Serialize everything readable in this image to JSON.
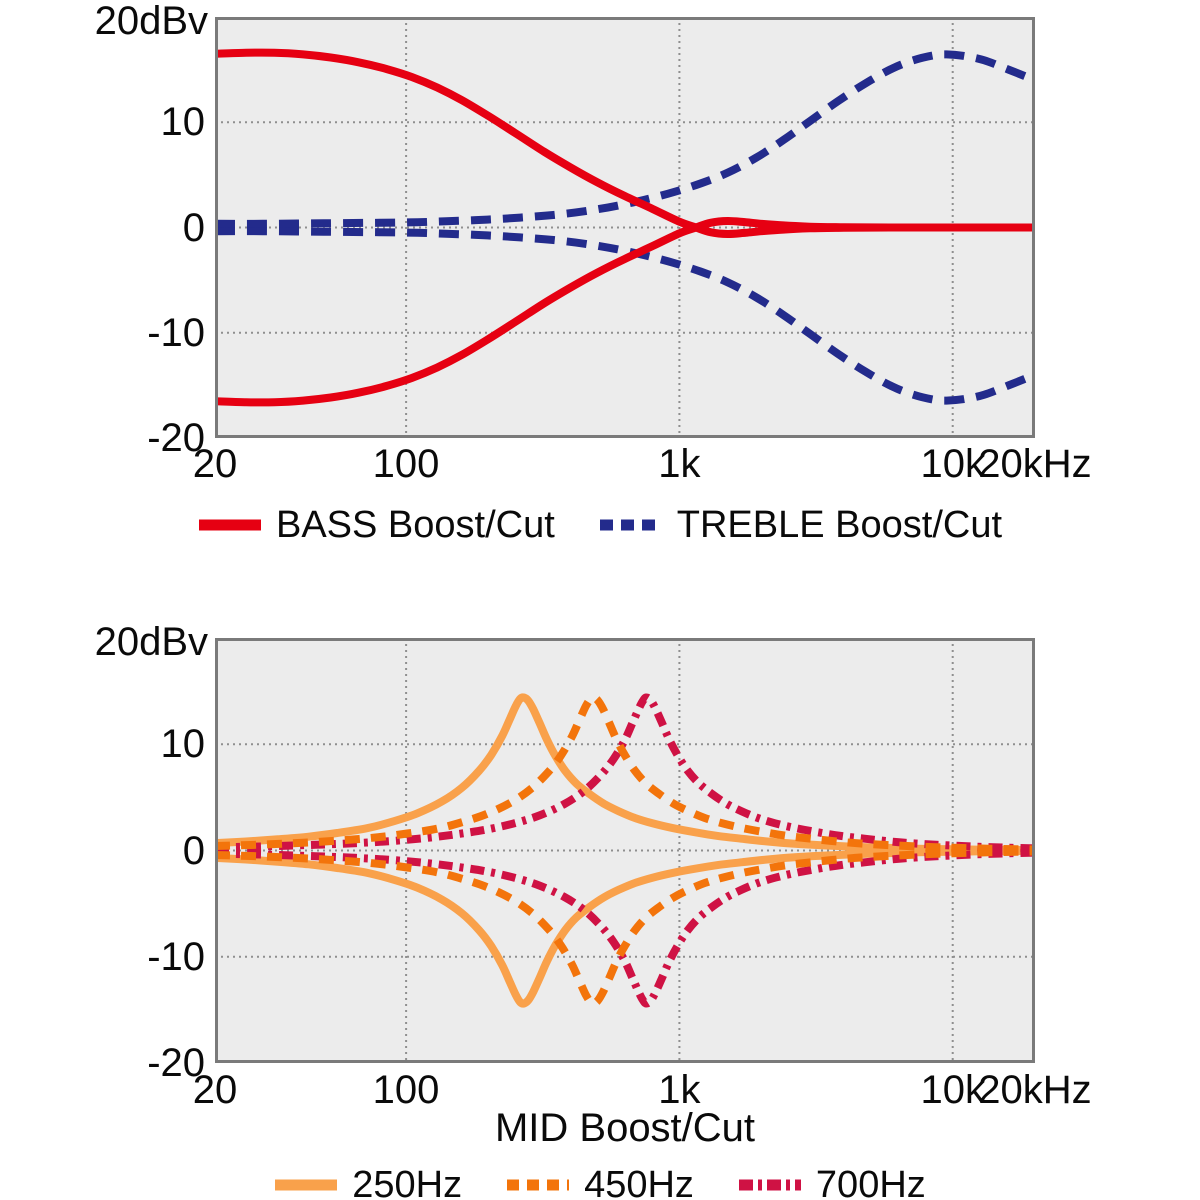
{
  "page": {
    "background_color": "#ffffff",
    "plot_background_color": "#ececec",
    "grid_color": "#8f8f8f",
    "border_color": "#7a7a7a",
    "text_color": "#0a0a0a"
  },
  "chart_data": [
    {
      "type": "line",
      "title": "",
      "unit_label": "20dBv",
      "xlabel": "",
      "x_scale": "log",
      "x_range_hz": [
        20,
        20000
      ],
      "ylim": [
        -20,
        20
      ],
      "grid": {
        "x_hz": [
          100,
          1000,
          10000
        ],
        "y_db": [
          10,
          0,
          -10
        ]
      },
      "x_ticks": [
        {
          "hz": 20,
          "label": "20"
        },
        {
          "hz": 100,
          "label": "100"
        },
        {
          "hz": 1000,
          "label": "1k"
        },
        {
          "hz": 10000,
          "label": "10k"
        },
        {
          "hz": 20000,
          "label": "20kHz"
        }
      ],
      "y_ticks": [
        {
          "db": 10,
          "label": "10"
        },
        {
          "db": 0,
          "label": "0"
        },
        {
          "db": -10,
          "label": "-10"
        },
        {
          "db": -20,
          "label": "-20"
        }
      ],
      "series": [
        {
          "name": "BASS Boost/Cut",
          "color": "#e60012",
          "style": "solid",
          "width": 8,
          "dash": [],
          "legend_dash": [],
          "z": 2,
          "mirrored": true,
          "points": [
            [
              20,
              16.5
            ],
            [
              26,
              16.6
            ],
            [
              33,
              16.6
            ],
            [
              42,
              16.45
            ],
            [
              53,
              16.15
            ],
            [
              67,
              15.7
            ],
            [
              85,
              15.05
            ],
            [
              105,
              14.3
            ],
            [
              130,
              13.3
            ],
            [
              160,
              12.1
            ],
            [
              200,
              10.6
            ],
            [
              250,
              9.0
            ],
            [
              320,
              7.2
            ],
            [
              400,
              5.7
            ],
            [
              500,
              4.3
            ],
            [
              630,
              3.0
            ],
            [
              800,
              1.75
            ],
            [
              1000,
              0.55
            ],
            [
              1150,
              0.0
            ],
            [
              1300,
              -0.45
            ],
            [
              1500,
              -0.62
            ],
            [
              1750,
              -0.5
            ],
            [
              2000,
              -0.35
            ],
            [
              2400,
              -0.2
            ],
            [
              3000,
              -0.08
            ],
            [
              4000,
              -0.02
            ],
            [
              6000,
              0
            ],
            [
              10000,
              0
            ],
            [
              20000,
              0
            ]
          ]
        },
        {
          "name": "TREBLE Boost/Cut",
          "color": "#232b8c",
          "style": "dashed",
          "width": 8,
          "dash": [
            20,
            12
          ],
          "legend_dash": [
            13,
            8
          ],
          "z": 1,
          "mirrored": true,
          "points": [
            [
              20,
              0.35
            ],
            [
              30,
              0.35
            ],
            [
              50,
              0.4
            ],
            [
              80,
              0.45
            ],
            [
              110,
              0.5
            ],
            [
              140,
              0.6
            ],
            [
              180,
              0.7
            ],
            [
              230,
              0.85
            ],
            [
              300,
              1.05
            ],
            [
              380,
              1.3
            ],
            [
              480,
              1.65
            ],
            [
              600,
              2.1
            ],
            [
              750,
              2.65
            ],
            [
              950,
              3.35
            ],
            [
              1200,
              4.2
            ],
            [
              1500,
              5.2
            ],
            [
              1900,
              6.6
            ],
            [
              2400,
              8.3
            ],
            [
              3000,
              10.1
            ],
            [
              3800,
              12.0
            ],
            [
              4800,
              13.7
            ],
            [
              6000,
              15.1
            ],
            [
              7200,
              15.9
            ],
            [
              8500,
              16.35
            ],
            [
              9500,
              16.45
            ],
            [
              11000,
              16.3
            ],
            [
              13000,
              15.9
            ],
            [
              16000,
              15.0
            ],
            [
              20000,
              14.0
            ]
          ]
        }
      ]
    },
    {
      "type": "line",
      "title": "",
      "unit_label": "20dBv",
      "xlabel": "MID Boost/Cut",
      "x_scale": "log",
      "x_range_hz": [
        20,
        20000
      ],
      "ylim": [
        -20,
        20
      ],
      "grid": {
        "x_hz": [
          100,
          1000,
          10000
        ],
        "y_db": [
          10,
          0,
          -10
        ]
      },
      "x_ticks": [
        {
          "hz": 20,
          "label": "20"
        },
        {
          "hz": 100,
          "label": "100"
        },
        {
          "hz": 1000,
          "label": "1k"
        },
        {
          "hz": 10000,
          "label": "10k"
        },
        {
          "hz": 20000,
          "label": "20kHz"
        }
      ],
      "y_ticks": [
        {
          "db": 10,
          "label": "10"
        },
        {
          "db": 0,
          "label": "0"
        },
        {
          "db": -10,
          "label": "-10"
        },
        {
          "db": -20,
          "label": "-20"
        }
      ],
      "series": [
        {
          "name": "250Hz",
          "color": "#f9a14b",
          "style": "solid",
          "width": 8,
          "dash": [],
          "legend_dash": [],
          "z": 1,
          "mirrored": true,
          "points": [
            [
              20,
              0.7
            ],
            [
              26,
              0.85
            ],
            [
              34,
              1.05
            ],
            [
              44,
              1.3
            ],
            [
              56,
              1.65
            ],
            [
              72,
              2.1
            ],
            [
              90,
              2.75
            ],
            [
              110,
              3.5
            ],
            [
              135,
              4.6
            ],
            [
              160,
              5.9
            ],
            [
              185,
              7.5
            ],
            [
              205,
              9.0
            ],
            [
              225,
              10.8
            ],
            [
              240,
              12.4
            ],
            [
              252,
              13.6
            ],
            [
              262,
              14.3
            ],
            [
              270,
              14.4
            ],
            [
              280,
              14.1
            ],
            [
              292,
              13.3
            ],
            [
              308,
              12.0
            ],
            [
              328,
              10.4
            ],
            [
              352,
              8.9
            ],
            [
              382,
              7.5
            ],
            [
              420,
              6.3
            ],
            [
              470,
              5.3
            ],
            [
              530,
              4.4
            ],
            [
              600,
              3.7
            ],
            [
              690,
              3.05
            ],
            [
              800,
              2.55
            ],
            [
              950,
              2.1
            ],
            [
              1150,
              1.7
            ],
            [
              1400,
              1.35
            ],
            [
              1700,
              1.1
            ],
            [
              2100,
              0.85
            ],
            [
              2600,
              0.65
            ],
            [
              3300,
              0.5
            ],
            [
              4300,
              0.36
            ],
            [
              5600,
              0.26
            ],
            [
              7500,
              0.17
            ],
            [
              10000,
              0.11
            ],
            [
              14000,
              0.06
            ],
            [
              20000,
              0.03
            ]
          ]
        },
        {
          "name": "450Hz",
          "color": "#f3740b",
          "style": "dashed",
          "width": 8,
          "dash": [
            15,
            11
          ],
          "legend_dash": [
            12,
            8
          ],
          "z": 3,
          "mirrored": true,
          "points": [
            [
              20,
              0.42
            ],
            [
              27,
              0.52
            ],
            [
              36,
              0.65
            ],
            [
              47,
              0.8
            ],
            [
              61,
              1.0
            ],
            [
              79,
              1.25
            ],
            [
              101,
              1.6
            ],
            [
              130,
              2.05
            ],
            [
              162,
              2.7
            ],
            [
              198,
              3.45
            ],
            [
              243,
              4.55
            ],
            [
              288,
              5.85
            ],
            [
              333,
              7.45
            ],
            [
              369,
              8.95
            ],
            [
              405,
              10.75
            ],
            [
              432,
              12.35
            ],
            [
              454,
              13.55
            ],
            [
              472,
              14.25
            ],
            [
              486,
              14.4
            ],
            [
              504,
              14.1
            ],
            [
              526,
              13.3
            ],
            [
              554,
              12.0
            ],
            [
              590,
              10.4
            ],
            [
              634,
              8.9
            ],
            [
              688,
              7.5
            ],
            [
              756,
              6.3
            ],
            [
              846,
              5.3
            ],
            [
              954,
              4.4
            ],
            [
              1080,
              3.7
            ],
            [
              1242,
              3.05
            ],
            [
              1440,
              2.55
            ],
            [
              1710,
              2.1
            ],
            [
              2070,
              1.7
            ],
            [
              2520,
              1.35
            ],
            [
              3060,
              1.1
            ],
            [
              3780,
              0.85
            ],
            [
              4680,
              0.65
            ],
            [
              5940,
              0.5
            ],
            [
              7740,
              0.36
            ],
            [
              10080,
              0.26
            ],
            [
              13500,
              0.17
            ],
            [
              18000,
              0.11
            ],
            [
              20000,
              0.1
            ]
          ]
        },
        {
          "name": "700Hz",
          "color": "#cf1244",
          "style": "dash-dot",
          "width": 8,
          "dash": [
            14,
            7,
            4,
            7
          ],
          "legend_dash": [
            14,
            5,
            4,
            5
          ],
          "z": 2,
          "mirrored": true,
          "points": [
            [
              20,
              0.3
            ],
            [
              28,
              0.37
            ],
            [
              39,
              0.47
            ],
            [
              52,
              0.58
            ],
            [
              70,
              0.73
            ],
            [
              95,
              0.95
            ],
            [
              123,
              1.22
            ],
            [
              157,
              1.57
            ],
            [
              200,
              2.0
            ],
            [
              252,
              2.6
            ],
            [
              308,
              3.3
            ],
            [
              378,
              4.35
            ],
            [
              448,
              5.6
            ],
            [
              518,
              7.15
            ],
            [
              574,
              8.6
            ],
            [
              630,
              10.35
            ],
            [
              672,
              11.95
            ],
            [
              706,
              13.2
            ],
            [
              734,
              14.05
            ],
            [
              756,
              14.4
            ],
            [
              784,
              14.15
            ],
            [
              818,
              13.35
            ],
            [
              862,
              12.05
            ],
            [
              918,
              10.45
            ],
            [
              986,
              8.95
            ],
            [
              1070,
              7.55
            ],
            [
              1176,
              6.35
            ],
            [
              1316,
              5.32
            ],
            [
              1484,
              4.42
            ],
            [
              1680,
              3.72
            ],
            [
              1932,
              3.07
            ],
            [
              2240,
              2.56
            ],
            [
              2660,
              2.11
            ],
            [
              3220,
              1.71
            ],
            [
              3920,
              1.36
            ],
            [
              4760,
              1.11
            ],
            [
              5880,
              0.86
            ],
            [
              7280,
              0.66
            ],
            [
              9240,
              0.51
            ],
            [
              12040,
              0.37
            ],
            [
              15680,
              0.27
            ],
            [
              20000,
              0.2
            ]
          ]
        }
      ]
    }
  ]
}
